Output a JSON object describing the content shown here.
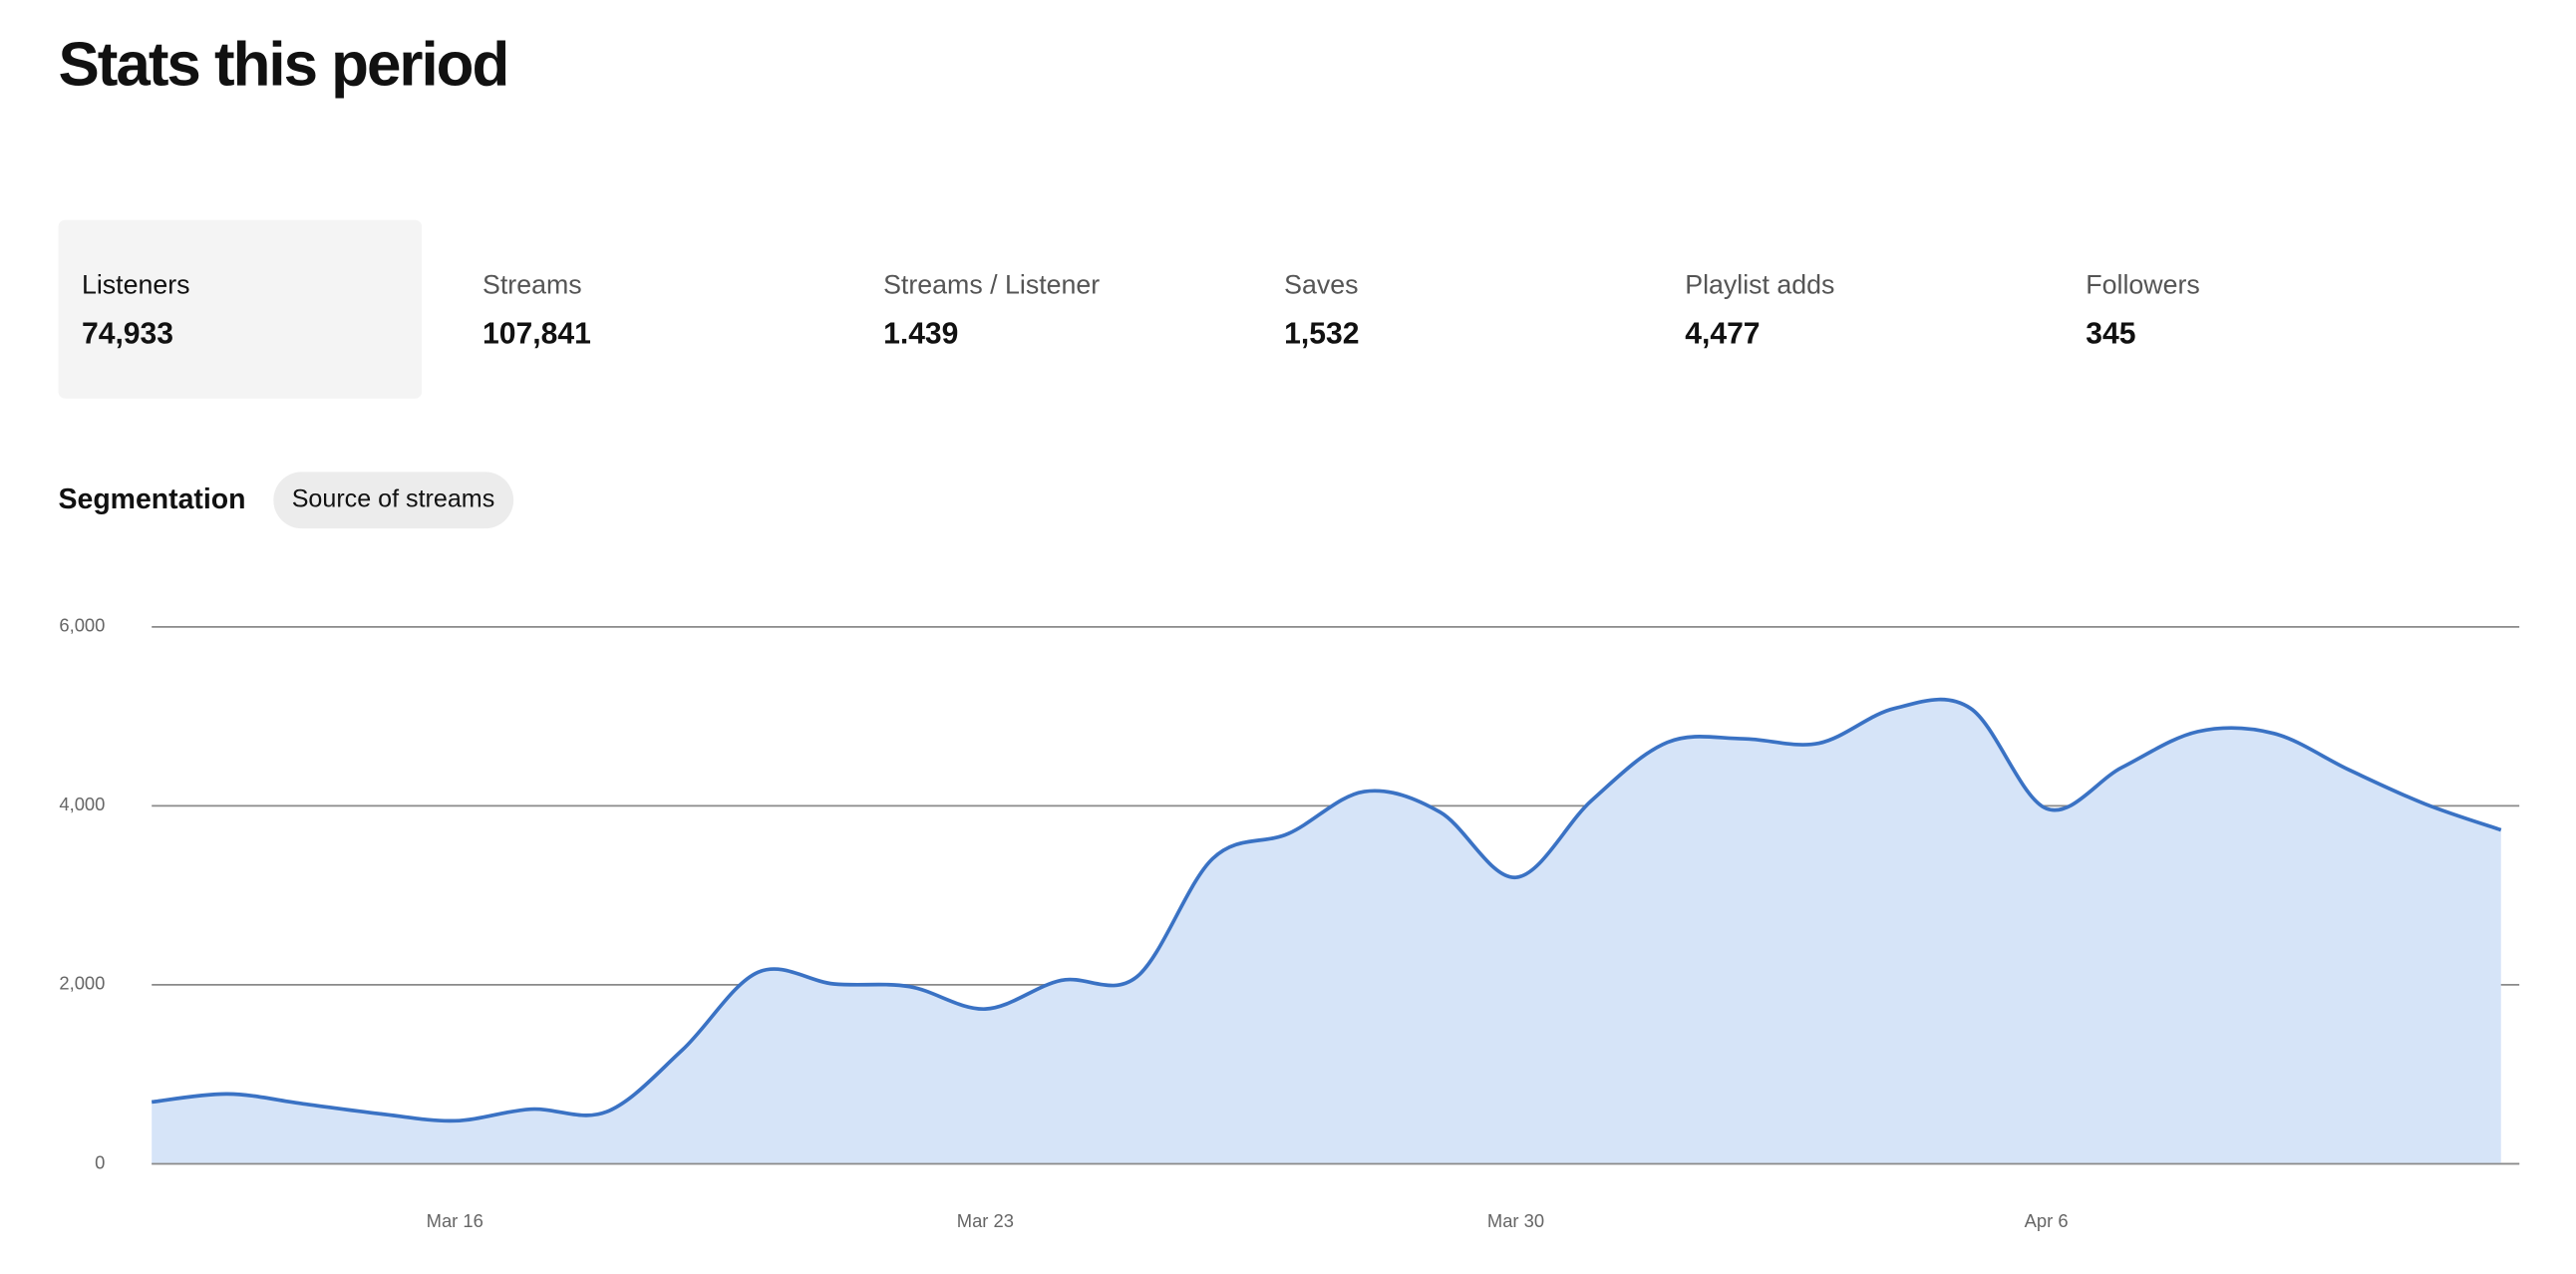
{
  "header": {
    "title": "Stats this period"
  },
  "stats": [
    {
      "label": "Listeners",
      "value": "74,933"
    },
    {
      "label": "Streams",
      "value": "107,841"
    },
    {
      "label": "Streams / Listener",
      "value": "1.439"
    },
    {
      "label": "Saves",
      "value": "1,532"
    },
    {
      "label": "Playlist adds",
      "value": "4,477"
    },
    {
      "label": "Followers",
      "value": "345"
    }
  ],
  "segmentation": {
    "label": "Segmentation",
    "option": "Source of streams"
  },
  "chart_data": {
    "type": "area",
    "categories": [
      null,
      null,
      null,
      null,
      "Mar 16",
      null,
      null,
      null,
      null,
      null,
      null,
      "Mar 23",
      null,
      null,
      null,
      null,
      null,
      null,
      "Mar 30",
      null,
      null,
      null,
      null,
      null,
      null,
      "Apr 6",
      null,
      null,
      null,
      null,
      null,
      null
    ],
    "values": [
      690,
      780,
      670,
      560,
      480,
      610,
      580,
      1270,
      2140,
      2010,
      1980,
      1730,
      2050,
      2090,
      3410,
      3690,
      4160,
      3930,
      3200,
      4060,
      4710,
      4750,
      4700,
      5090,
      5090,
      3970,
      4430,
      4830,
      4810,
      4400,
      4020,
      3730
    ],
    "color": "#3a72c4",
    "fill": "#d6e4f8",
    "ylim": [
      0,
      6000
    ],
    "yticks": [
      0,
      {
        "value": 2000,
        "label": "2,000"
      },
      {
        "value": 4000,
        "label": "4,000"
      },
      {
        "value": 6000,
        "label": "6,000"
      }
    ],
    "grid": true
  }
}
